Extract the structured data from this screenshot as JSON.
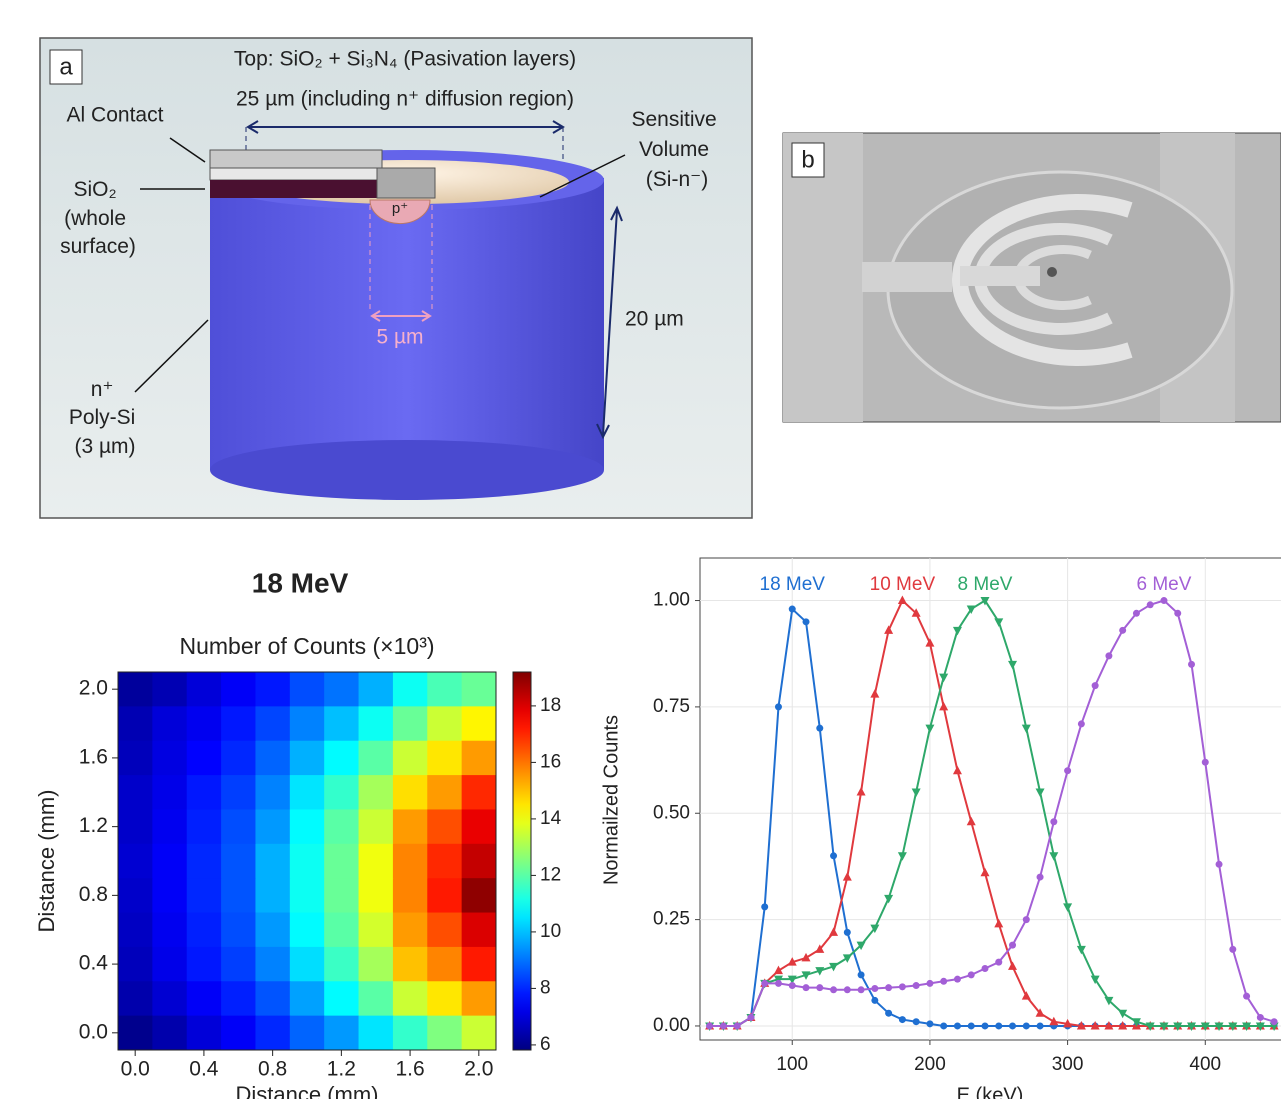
{
  "panel_a": {
    "label": "a",
    "top_text": "Top: SiO₂ + Si₃N₄ (Pasivation layers)",
    "width_text": "25 µm (including n⁺ diffusion region)",
    "al_contact": "Al Contact",
    "sio2": [
      "SiO₂",
      "(whole",
      "surface)"
    ],
    "sensitive": [
      "Sensitive",
      "Volume",
      "(Si-n⁻)"
    ],
    "p_plus": "p⁺",
    "diameter": "5 µm",
    "height": "20 µm",
    "poly": [
      "n⁺",
      "Poly-Si",
      "(3 µm)"
    ]
  },
  "panel_b": {
    "label": "b"
  },
  "chart_data": [
    {
      "type": "heatmap",
      "title": "18 MeV",
      "subtitle": "Number of Counts (×10³)",
      "xlabel": "Distance (mm)",
      "ylabel": "Distance (mm)",
      "x": [
        0.0,
        0.2,
        0.4,
        0.6,
        0.8,
        1.0,
        1.2,
        1.4,
        1.6,
        1.8,
        2.0
      ],
      "y": [
        2.0,
        1.8,
        1.6,
        1.4,
        1.2,
        1.0,
        0.8,
        0.6,
        0.4,
        0.2,
        0.0
      ],
      "values": [
        [
          6.2,
          6.5,
          7.0,
          7.4,
          7.8,
          8.5,
          9.0,
          9.8,
          11.0,
          11.8,
          12.2
        ],
        [
          6.5,
          7.0,
          7.3,
          7.8,
          8.4,
          9.2,
          10.0,
          11.0,
          12.2,
          13.5,
          14.3
        ],
        [
          6.6,
          7.1,
          7.5,
          8.0,
          8.8,
          9.8,
          10.8,
          12.0,
          13.5,
          14.5,
          15.5
        ],
        [
          6.8,
          7.2,
          7.8,
          8.3,
          9.2,
          10.5,
          11.5,
          13.0,
          14.6,
          15.5,
          17.0
        ],
        [
          6.8,
          7.3,
          7.9,
          8.5,
          9.5,
          10.8,
          12.0,
          13.5,
          15.5,
          16.5,
          17.8
        ],
        [
          6.9,
          7.4,
          8.0,
          8.6,
          9.8,
          11.0,
          12.2,
          14.0,
          15.8,
          17.0,
          18.3
        ],
        [
          6.8,
          7.4,
          8.0,
          8.6,
          9.8,
          11.0,
          12.2,
          14.0,
          15.8,
          17.2,
          19.0
        ],
        [
          6.7,
          7.3,
          7.9,
          8.5,
          9.5,
          10.8,
          12.0,
          13.6,
          15.5,
          16.5,
          18.0
        ],
        [
          6.6,
          7.2,
          7.8,
          8.3,
          9.2,
          10.4,
          11.6,
          13.0,
          15.0,
          15.8,
          17.2
        ],
        [
          6.4,
          6.9,
          7.4,
          7.9,
          8.6,
          9.6,
          10.8,
          12.0,
          13.5,
          14.5,
          15.5
        ],
        [
          6.0,
          6.4,
          7.0,
          7.4,
          8.0,
          8.8,
          9.5,
          10.5,
          11.5,
          12.5,
          13.5
        ]
      ],
      "xlim": [
        -0.1,
        2.1
      ],
      "ylim": [
        -0.1,
        2.1
      ],
      "xticks": [
        {
          "value": 0,
          "label": "0.0"
        },
        {
          "value": 0.4,
          "label": "0.4"
        },
        {
          "value": 0.8,
          "label": "0.8"
        },
        {
          "value": 1.2,
          "label": "1.2"
        },
        {
          "value": 1.6,
          "label": "1.6"
        },
        {
          "value": 2,
          "label": "2.0"
        }
      ],
      "yticks": [
        {
          "value": 0,
          "label": "0.0"
        },
        {
          "value": 0.4,
          "label": "0.4"
        },
        {
          "value": 0.8,
          "label": "0.8"
        },
        {
          "value": 1.2,
          "label": "1.2"
        },
        {
          "value": 1.6,
          "label": "1.6"
        },
        {
          "value": 2,
          "label": "2.0"
        }
      ],
      "colormap": "jet",
      "clim": [
        5.82,
        19.2
      ],
      "cticks": [
        6,
        8,
        10,
        12,
        14,
        16,
        18
      ]
    },
    {
      "type": "line",
      "xlabel": "E (keV)",
      "ylabel": "Normailzed Counts",
      "grid": true,
      "x": [
        40,
        50,
        60,
        70,
        80,
        90,
        100,
        110,
        120,
        130,
        140,
        150,
        160,
        170,
        180,
        190,
        200,
        210,
        220,
        230,
        240,
        250,
        260,
        270,
        280,
        290,
        300,
        310,
        320,
        330,
        340,
        350,
        360,
        370,
        380,
        390,
        400,
        410,
        420,
        430,
        440,
        450
      ],
      "series": [
        {
          "name": "18 MeV",
          "color": "#1f6fd1",
          "marker": "circle",
          "values": [
            0,
            0,
            0,
            0.02,
            0.28,
            0.75,
            0.98,
            0.95,
            0.7,
            0.4,
            0.22,
            0.12,
            0.06,
            0.03,
            0.015,
            0.01,
            0.005,
            0,
            0,
            0,
            0,
            0,
            0,
            0,
            0,
            0,
            0,
            0,
            0,
            0,
            0,
            0,
            0,
            0,
            0,
            0,
            0,
            0,
            0,
            0,
            0,
            0
          ]
        },
        {
          "name": "10 MeV",
          "color": "#e0393e",
          "marker": "triangle-up",
          "values": [
            0,
            0,
            0,
            0.02,
            0.1,
            0.13,
            0.15,
            0.16,
            0.18,
            0.22,
            0.35,
            0.55,
            0.78,
            0.93,
            1.0,
            0.97,
            0.9,
            0.75,
            0.6,
            0.48,
            0.36,
            0.24,
            0.14,
            0.07,
            0.03,
            0.01,
            0.005,
            0,
            0,
            0,
            0,
            0,
            0,
            0,
            0,
            0,
            0,
            0,
            0,
            0,
            0,
            0
          ]
        },
        {
          "name": "8 MeV",
          "color": "#2ea86a",
          "marker": "triangle-down",
          "values": [
            0,
            0,
            0,
            0.02,
            0.1,
            0.11,
            0.11,
            0.12,
            0.13,
            0.14,
            0.16,
            0.19,
            0.23,
            0.3,
            0.4,
            0.55,
            0.7,
            0.82,
            0.93,
            0.98,
            1.0,
            0.95,
            0.85,
            0.7,
            0.55,
            0.4,
            0.28,
            0.18,
            0.11,
            0.06,
            0.03,
            0.01,
            0,
            0,
            0,
            0,
            0,
            0,
            0,
            0,
            0,
            0
          ]
        },
        {
          "name": "6 MeV",
          "color": "#a35fd6",
          "marker": "circle",
          "values": [
            0,
            0,
            0,
            0.02,
            0.1,
            0.1,
            0.095,
            0.09,
            0.09,
            0.085,
            0.085,
            0.085,
            0.088,
            0.09,
            0.092,
            0.095,
            0.1,
            0.105,
            0.11,
            0.12,
            0.135,
            0.15,
            0.19,
            0.25,
            0.35,
            0.48,
            0.6,
            0.71,
            0.8,
            0.87,
            0.93,
            0.97,
            0.99,
            1.0,
            0.97,
            0.85,
            0.62,
            0.38,
            0.18,
            0.07,
            0.02,
            0.01
          ]
        }
      ],
      "xlim": [
        33,
        455
      ],
      "ylim": [
        -0.033,
        1.1
      ],
      "xticks": [
        100,
        200,
        300,
        400
      ],
      "yticks": [
        {
          "value": 0,
          "label": "0.00"
        },
        {
          "value": 0.25,
          "label": "0.25"
        },
        {
          "value": 0.5,
          "label": "0.50"
        },
        {
          "value": 0.75,
          "label": "0.75"
        },
        {
          "value": 1,
          "label": "1.00"
        }
      ]
    }
  ]
}
